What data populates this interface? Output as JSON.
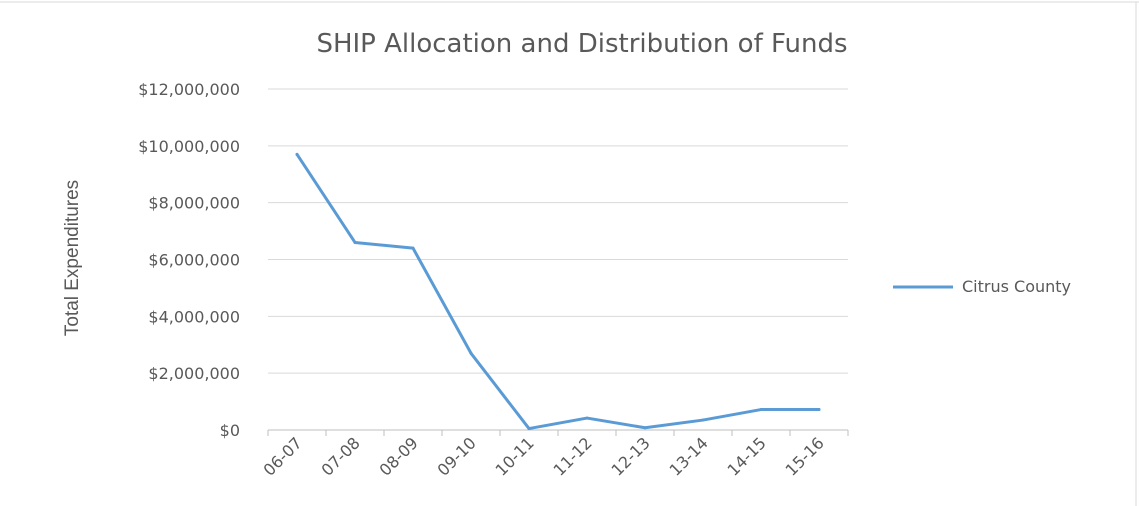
{
  "chart_data": {
    "type": "line",
    "title": "SHIP Allocation and Distribution of Funds",
    "ylabel": "Total Expenditures",
    "xlabel": "",
    "categories": [
      "06-07",
      "07-08",
      "08-09",
      "09-10",
      "10-11",
      "11-12",
      "12-13",
      "13-14",
      "14-15",
      "15-16"
    ],
    "series": [
      {
        "name": "Citrus County",
        "color": "#5b9bd5",
        "values": [
          9700000,
          6600000,
          6400000,
          2700000,
          50000,
          420000,
          80000,
          350000,
          720000,
          720000
        ]
      }
    ],
    "ylim": [
      0,
      12000000
    ],
    "yticks": [
      0,
      2000000,
      4000000,
      6000000,
      8000000,
      10000000,
      12000000
    ],
    "ytick_labels": [
      "$0",
      "$2,000,000",
      "$4,000,000",
      "$6,000,000",
      "$8,000,000",
      "$10,000,000",
      "$12,000,000"
    ],
    "grid": true,
    "legend_position": "right"
  }
}
